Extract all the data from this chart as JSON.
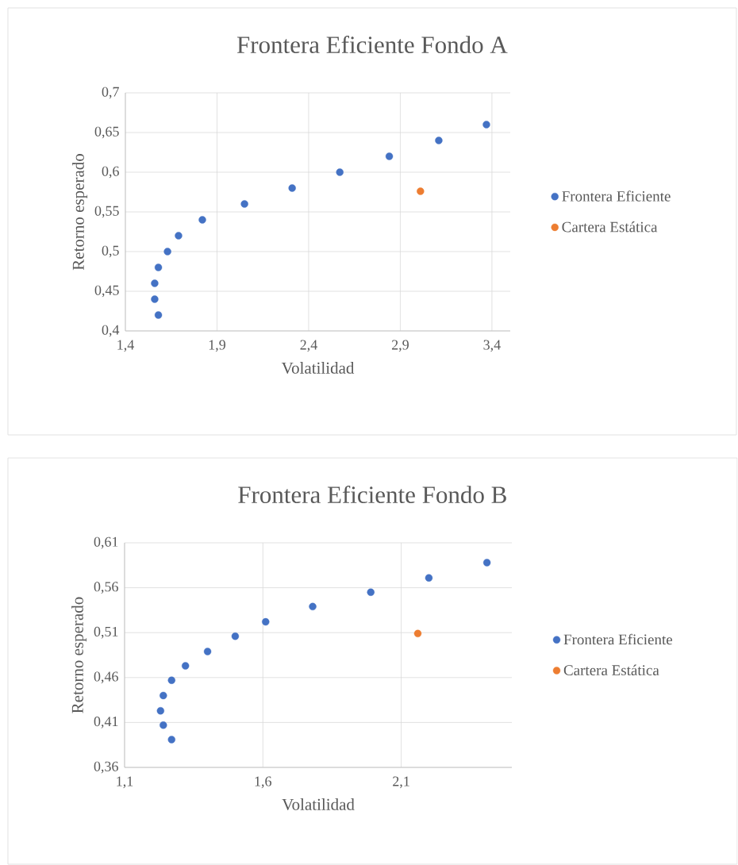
{
  "chart_data": [
    {
      "type": "scatter",
      "title": "Frontera Eficiente Fondo A",
      "xlabel": "Volatilidad",
      "ylabel": "Retorno esperado",
      "series": [
        {
          "name": "Frontera Eficiente",
          "color": "#4472c4",
          "x": [
            1.58,
            1.56,
            1.56,
            1.58,
            1.63,
            1.69,
            1.82,
            2.05,
            2.31,
            2.57,
            2.84,
            3.11,
            3.37
          ],
          "values": [
            0.42,
            0.44,
            0.46,
            0.48,
            0.5,
            0.52,
            0.54,
            0.56,
            0.58,
            0.6,
            0.62,
            0.64,
            0.66
          ]
        },
        {
          "name": "Cartera Estática",
          "color": "#ed7d31",
          "x": [
            3.01
          ],
          "values": [
            0.576
          ]
        }
      ],
      "xlim": [
        1.4,
        3.5
      ],
      "ylim": [
        0.4,
        0.7
      ],
      "xticks": [
        {
          "value": 1.4,
          "label": "1,4"
        },
        {
          "value": 1.9,
          "label": "1,9"
        },
        {
          "value": 2.4,
          "label": "2,4"
        },
        {
          "value": 2.9,
          "label": "2,9"
        },
        {
          "value": 3.4,
          "label": "3,4"
        }
      ],
      "yticks": [
        {
          "value": 0.4,
          "label": "0,4"
        },
        {
          "value": 0.45,
          "label": "0,45"
        },
        {
          "value": 0.5,
          "label": "0,5"
        },
        {
          "value": 0.55,
          "label": "0,55"
        },
        {
          "value": 0.6,
          "label": "0,6"
        },
        {
          "value": 0.65,
          "label": "0,65"
        },
        {
          "value": 0.7,
          "label": "0,7"
        }
      ],
      "grid": true,
      "legend": "right",
      "marker": "circle"
    },
    {
      "type": "scatter",
      "title": "Frontera Eficiente Fondo B",
      "xlabel": "Volatilidad",
      "ylabel": "Retorno esperado",
      "series": [
        {
          "name": "Frontera Eficiente",
          "color": "#4472c4",
          "x": [
            1.27,
            1.24,
            1.23,
            1.24,
            1.27,
            1.32,
            1.4,
            1.5,
            1.61,
            1.78,
            1.99,
            2.2,
            2.41
          ],
          "values": [
            0.391,
            0.407,
            0.423,
            0.44,
            0.457,
            0.473,
            0.489,
            0.506,
            0.522,
            0.539,
            0.555,
            0.571,
            0.588
          ]
        },
        {
          "name": "Cartera Estática",
          "color": "#ed7d31",
          "x": [
            2.16
          ],
          "values": [
            0.509
          ]
        }
      ],
      "xlim": [
        1.1,
        2.5
      ],
      "ylim": [
        0.36,
        0.61
      ],
      "xticks": [
        {
          "value": 1.1,
          "label": "1,1"
        },
        {
          "value": 1.6,
          "label": "1,6"
        },
        {
          "value": 2.1,
          "label": "2,1"
        }
      ],
      "yticks": [
        {
          "value": 0.36,
          "label": "0,36"
        },
        {
          "value": 0.41,
          "label": "0,41"
        },
        {
          "value": 0.46,
          "label": "0,46"
        },
        {
          "value": 0.51,
          "label": "0,51"
        },
        {
          "value": 0.56,
          "label": "0,56"
        },
        {
          "value": 0.61,
          "label": "0,61"
        }
      ],
      "grid": true,
      "legend": "right",
      "marker": "circle"
    }
  ]
}
